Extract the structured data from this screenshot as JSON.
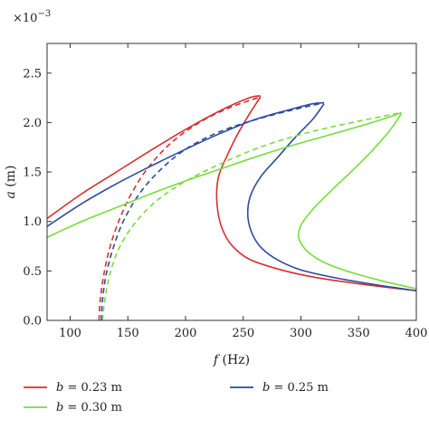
{
  "chart_data": {
    "type": "line",
    "title": "",
    "xlabel": "f (Hz)",
    "xlabel_var": "f",
    "xlabel_unit": " (Hz)",
    "ylabel": "a (m)",
    "ylabel_var": "a",
    "ylabel_unit": " (m)",
    "y_multiplier_label": "×10",
    "y_multiplier_exp": "−3",
    "xlim": [
      80,
      400
    ],
    "ylim": [
      0,
      2.8
    ],
    "xticks": [
      100,
      150,
      200,
      250,
      300,
      350,
      400
    ],
    "yticks": [
      0.0,
      0.5,
      1.0,
      1.5,
      2.0,
      2.5
    ],
    "ytick_labels": [
      "0.0",
      "0.5",
      "1.0",
      "1.5",
      "2.0",
      "2.5"
    ],
    "grid": false,
    "legend_position": "bottom",
    "series": [
      {
        "name": "b = 0.23 m",
        "legend_var": "b",
        "legend_rest": " = 0.23 m",
        "color": "#d62f2f",
        "solid_upper": [
          [
            80,
            1.03
          ],
          [
            110,
            1.28
          ],
          [
            140,
            1.5
          ],
          [
            170,
            1.72
          ],
          [
            200,
            1.93
          ],
          [
            230,
            2.12
          ],
          [
            255,
            2.25
          ],
          [
            265,
            2.27
          ]
        ],
        "solid_lower": [
          [
            265,
            2.26
          ],
          [
            255,
            2.08
          ],
          [
            245,
            1.88
          ],
          [
            235,
            1.64
          ],
          [
            229,
            1.47
          ],
          [
            227,
            1.3
          ],
          [
            228,
            1.1
          ],
          [
            232,
            0.92
          ],
          [
            240,
            0.76
          ],
          [
            255,
            0.62
          ],
          [
            280,
            0.52
          ],
          [
            310,
            0.44
          ],
          [
            350,
            0.37
          ],
          [
            400,
            0.3
          ]
        ],
        "dashed": [
          [
            125,
            0.0
          ],
          [
            126,
            0.2
          ],
          [
            129,
            0.45
          ],
          [
            134,
            0.72
          ],
          [
            142,
            1.0
          ],
          [
            153,
            1.28
          ],
          [
            168,
            1.55
          ],
          [
            188,
            1.8
          ],
          [
            212,
            2.0
          ],
          [
            238,
            2.15
          ],
          [
            265,
            2.26
          ]
        ]
      },
      {
        "name": "b = 0.25 m",
        "legend_var": "b",
        "legend_rest": " = 0.25 m",
        "color": "#2e4a9e",
        "solid_upper": [
          [
            80,
            0.95
          ],
          [
            110,
            1.18
          ],
          [
            140,
            1.38
          ],
          [
            170,
            1.56
          ],
          [
            200,
            1.73
          ],
          [
            230,
            1.89
          ],
          [
            260,
            2.03
          ],
          [
            290,
            2.13
          ],
          [
            310,
            2.19
          ],
          [
            320,
            2.2
          ]
        ],
        "solid_lower": [
          [
            320,
            2.19
          ],
          [
            310,
            2.03
          ],
          [
            295,
            1.85
          ],
          [
            280,
            1.65
          ],
          [
            265,
            1.45
          ],
          [
            256,
            1.25
          ],
          [
            254,
            1.05
          ],
          [
            258,
            0.87
          ],
          [
            266,
            0.73
          ],
          [
            280,
            0.61
          ],
          [
            300,
            0.51
          ],
          [
            330,
            0.43
          ],
          [
            365,
            0.36
          ],
          [
            400,
            0.3
          ]
        ],
        "dashed": [
          [
            127,
            0.0
          ],
          [
            128,
            0.2
          ],
          [
            131,
            0.45
          ],
          [
            137,
            0.72
          ],
          [
            146,
            1.0
          ],
          [
            160,
            1.28
          ],
          [
            178,
            1.52
          ],
          [
            200,
            1.73
          ],
          [
            228,
            1.9
          ],
          [
            258,
            2.02
          ],
          [
            290,
            2.12
          ],
          [
            320,
            2.2
          ]
        ]
      },
      {
        "name": "b = 0.30 m",
        "legend_var": "b",
        "legend_rest": " = 0.30 m",
        "color": "#77dd3c",
        "solid_upper": [
          [
            80,
            0.84
          ],
          [
            110,
            1.0
          ],
          [
            140,
            1.14
          ],
          [
            170,
            1.28
          ],
          [
            200,
            1.41
          ],
          [
            230,
            1.53
          ],
          [
            260,
            1.65
          ],
          [
            290,
            1.76
          ],
          [
            320,
            1.86
          ],
          [
            350,
            1.96
          ],
          [
            375,
            2.05
          ],
          [
            387,
            2.1
          ]
        ],
        "solid_lower": [
          [
            387,
            2.09
          ],
          [
            377,
            1.92
          ],
          [
            362,
            1.72
          ],
          [
            345,
            1.52
          ],
          [
            327,
            1.32
          ],
          [
            310,
            1.12
          ],
          [
            300,
            0.96
          ],
          [
            298,
            0.84
          ],
          [
            303,
            0.73
          ],
          [
            312,
            0.64
          ],
          [
            325,
            0.56
          ],
          [
            345,
            0.48
          ],
          [
            370,
            0.4
          ],
          [
            400,
            0.32
          ]
        ],
        "dashed": [
          [
            128,
            0.0
          ],
          [
            130,
            0.2
          ],
          [
            134,
            0.45
          ],
          [
            142,
            0.72
          ],
          [
            154,
            0.95
          ],
          [
            172,
            1.18
          ],
          [
            196,
            1.38
          ],
          [
            226,
            1.56
          ],
          [
            262,
            1.74
          ],
          [
            300,
            1.88
          ],
          [
            340,
            1.99
          ],
          [
            387,
            2.1
          ]
        ]
      }
    ]
  }
}
